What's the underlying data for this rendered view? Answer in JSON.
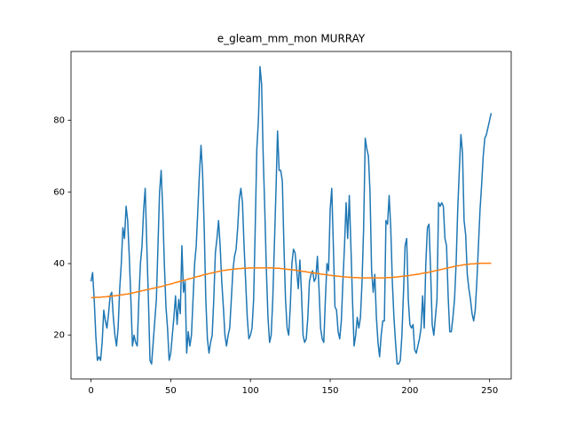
{
  "chart_data": {
    "type": "line",
    "title": "e_gleam_mm_mon MURRAY",
    "xlim": [
      -12.55,
      263.55
    ],
    "xticks": [
      0,
      50,
      100,
      150,
      200,
      250
    ],
    "ylim": [
      7.8,
      99.2
    ],
    "yticks": [
      20,
      40,
      60,
      80
    ],
    "series": [
      {
        "color": "#1f77b4",
        "values": [
          35,
          37.5,
          30,
          20,
          13,
          14,
          13,
          18,
          27,
          24,
          22,
          26,
          31,
          32,
          25,
          20,
          17,
          22,
          33,
          40,
          50,
          47,
          56,
          52,
          42,
          30,
          17,
          20,
          18,
          17,
          30,
          40,
          45,
          55,
          61,
          45,
          30,
          13,
          12,
          18,
          24,
          30,
          45,
          60,
          66,
          55,
          40,
          28,
          22,
          13,
          15,
          20,
          25,
          31,
          23,
          30,
          26,
          45,
          32,
          35,
          15,
          21,
          17,
          20,
          30,
          40,
          45,
          55,
          65,
          73,
          65,
          50,
          30,
          19,
          15,
          18,
          20,
          30,
          43,
          47,
          52,
          45,
          35,
          28,
          20,
          17,
          20,
          22,
          30,
          38,
          42,
          44,
          50,
          58,
          61,
          57,
          45,
          35,
          25,
          19,
          20,
          22,
          30,
          50,
          72,
          80,
          95,
          90,
          70,
          55,
          38,
          25,
          18,
          20,
          30,
          45,
          60,
          77,
          66,
          66,
          63,
          45,
          30,
          22,
          20,
          28,
          40,
          44,
          43,
          38,
          33,
          41,
          32,
          20,
          18,
          19,
          25,
          35,
          37,
          38,
          35,
          36,
          42,
          33,
          22,
          19,
          18,
          30,
          40,
          38,
          55,
          61,
          45,
          28,
          27,
          21,
          19,
          24,
          35,
          45,
          57,
          47,
          59,
          45,
          30,
          17,
          20,
          25,
          22,
          25,
          35,
          50,
          75,
          72,
          70,
          60,
          38,
          32,
          37,
          25,
          18,
          14,
          20,
          24,
          24,
          52,
          51,
          59,
          50,
          35,
          25,
          18,
          12,
          12,
          13,
          20,
          32,
          45,
          47,
          30,
          23,
          22,
          23,
          16,
          15,
          17,
          19,
          22,
          31,
          22,
          40,
          50,
          51,
          38,
          23,
          20,
          25,
          30,
          57,
          56,
          57,
          56,
          47,
          45,
          31,
          21,
          21,
          25,
          30,
          40,
          55,
          66,
          76,
          71,
          52,
          48,
          37,
          33,
          30,
          26,
          24,
          27,
          35,
          45,
          55,
          62,
          70,
          75,
          76,
          78,
          80,
          82
        ]
      },
      {
        "color": "#ff7f0e",
        "values": [
          30.5,
          30.5,
          30.5,
          30.6,
          30.6,
          30.6,
          30.6,
          30.7,
          30.7,
          30.7,
          30.8,
          30.8,
          30.9,
          30.9,
          31.0,
          31.0,
          31.1,
          31.1,
          31.2,
          31.3,
          31.3,
          31.4,
          31.5,
          31.5,
          31.6,
          31.7,
          31.8,
          31.9,
          32.0,
          32.1,
          32.2,
          32.3,
          32.4,
          32.5,
          32.6,
          32.7,
          32.8,
          32.9,
          33.0,
          33.1,
          33.2,
          33.3,
          33.4,
          33.5,
          33.6,
          33.7,
          33.8,
          34.0,
          34.1,
          34.2,
          34.3,
          34.4,
          34.6,
          34.7,
          34.8,
          34.9,
          35.1,
          35.2,
          35.3,
          35.4,
          35.5,
          35.7,
          35.8,
          35.9,
          36.0,
          36.2,
          36.3,
          36.4,
          36.5,
          36.6,
          36.8,
          36.9,
          37.0,
          37.1,
          37.2,
          37.3,
          37.4,
          37.5,
          37.6,
          37.7,
          37.8,
          37.9,
          38.0,
          38.1,
          38.1,
          38.2,
          38.3,
          38.3,
          38.4,
          38.4,
          38.5,
          38.5,
          38.6,
          38.6,
          38.6,
          38.7,
          38.7,
          38.7,
          38.7,
          38.8,
          38.8,
          38.8,
          38.8,
          38.8,
          38.8,
          38.8,
          38.8,
          38.8,
          38.8,
          38.8,
          38.8,
          38.8,
          38.8,
          38.8,
          38.8,
          38.7,
          38.7,
          38.7,
          38.7,
          38.6,
          38.6,
          38.5,
          38.5,
          38.4,
          38.4,
          38.3,
          38.3,
          38.2,
          38.2,
          38.1,
          38.0,
          38.0,
          37.9,
          37.8,
          37.8,
          37.7,
          37.6,
          37.6,
          37.5,
          37.4,
          37.4,
          37.3,
          37.2,
          37.2,
          37.1,
          37.0,
          37.0,
          36.9,
          36.9,
          36.8,
          36.7,
          36.7,
          36.6,
          36.6,
          36.5,
          36.5,
          36.4,
          36.4,
          36.3,
          36.3,
          36.3,
          36.2,
          36.2,
          36.2,
          36.1,
          36.1,
          36.1,
          36.1,
          36.0,
          36.0,
          36.0,
          36.0,
          36.0,
          36.0,
          36.0,
          36.0,
          36.0,
          36.0,
          36.0,
          36.0,
          36.0,
          36.0,
          36.0,
          36.0,
          36.0,
          36.1,
          36.1,
          36.1,
          36.1,
          36.2,
          36.2,
          36.2,
          36.3,
          36.3,
          36.4,
          36.4,
          36.5,
          36.5,
          36.6,
          36.6,
          36.7,
          36.8,
          36.8,
          36.9,
          37.0,
          37.0,
          37.1,
          37.2,
          37.3,
          37.4,
          37.4,
          37.5,
          37.6,
          37.7,
          37.8,
          37.9,
          38.0,
          38.1,
          38.2,
          38.3,
          38.4,
          38.5,
          38.6,
          38.7,
          38.8,
          38.9,
          39.0,
          39.1,
          39.2,
          39.3,
          39.4,
          39.4,
          39.5,
          39.6,
          39.7,
          39.7,
          39.8,
          39.8,
          39.9,
          39.9,
          39.9,
          40.0,
          40.0,
          40.0,
          40.1,
          40.1,
          40.1,
          40.1,
          40.1,
          40.1,
          40.1,
          40.1
        ]
      }
    ]
  }
}
